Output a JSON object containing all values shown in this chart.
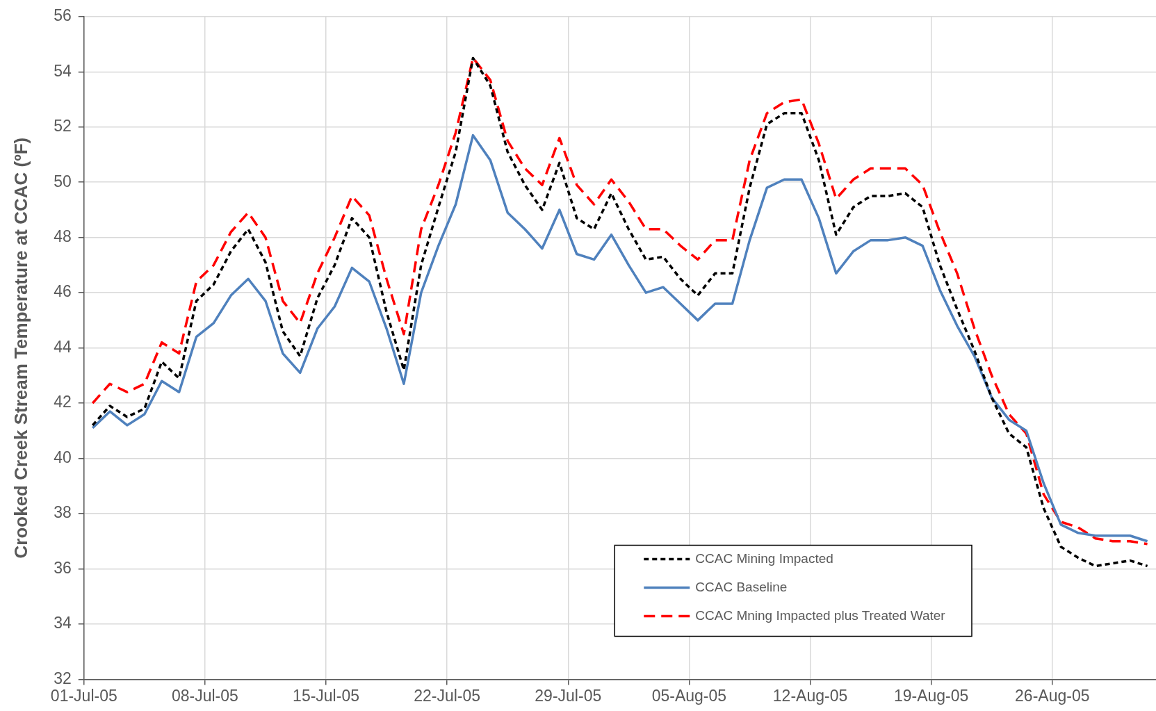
{
  "chart_data": {
    "type": "line",
    "ylabel": "Crooked Creek Stream Temperature at CCAC (ºF)",
    "x": [
      "--07-01T12:00",
      "--07-02T12:00",
      "--07-03T12:00",
      "--07-04T12:00",
      "--07-05T12:00",
      "--07-06T12:00",
      "--07-07T12:00",
      "--07-08T12:00",
      "--07-09T12:00",
      "--07-10T12:00",
      "--07-11T12:00",
      "--07-12T12:00",
      "--07-13T12:00",
      "--07-14T12:00",
      "--07-15T12:00",
      "--07-16T12:00",
      "--07-17T12:00",
      "--07-18T12:00",
      "--07-19T12:00",
      "--07-20T12:00",
      "--07-21T12:00",
      "--07-22T12:00",
      "--07-23T12:00",
      "--07-24T12:00",
      "--07-25T12:00",
      "--07-26T12:00",
      "--07-27T12:00",
      "--07-28T12:00",
      "--07-29T12:00",
      "--07-30T12:00",
      "--07-31T12:00",
      "--08-01T12:00",
      "--08-02T12:00",
      "--08-03T12:00",
      "--08-04T12:00",
      "--08-05T12:00",
      "--08-06T12:00",
      "--08-07T12:00",
      "--08-08T12:00",
      "--08-09T12:00",
      "--08-10T12:00",
      "--08-11T12:00",
      "--08-12T12:00",
      "--08-13T12:00",
      "--08-14T12:00",
      "--08-15T12:00",
      "--08-16T12:00",
      "--08-17T12:00",
      "--08-18T12:00",
      "--08-19T12:00",
      "--08-20T12:00",
      "--08-21T12:00",
      "--08-22T12:00",
      "--08-23T12:00",
      "--08-24T12:00",
      "--08-25T12:00",
      "--08-26T12:00",
      "--08-27T12:00",
      "--08-28T12:00",
      "--08-29T12:00",
      "--08-30T12:00",
      "--08-31T12:00"
    ],
    "series": [
      {
        "name": "CCAC Mining Impacted",
        "color": "#000000",
        "line_style": "dotted",
        "values": [
          41.2,
          41.9,
          41.5,
          41.8,
          43.5,
          42.9,
          45.7,
          46.3,
          47.5,
          48.3,
          47.1,
          44.6,
          43.7,
          45.8,
          47.0,
          48.7,
          48.0,
          45.3,
          43.2,
          47.0,
          49.1,
          51.1,
          54.5,
          53.5,
          51.1,
          49.9,
          49.0,
          50.7,
          48.7,
          48.3,
          49.6,
          48.3,
          47.2,
          47.3,
          46.5,
          45.9,
          46.7,
          46.7,
          49.8,
          52.1,
          52.5,
          52.5,
          50.8,
          48.1,
          49.1,
          49.5,
          49.5,
          49.6,
          49.1,
          47.0,
          45.4,
          43.9,
          42.2,
          40.9,
          40.4,
          38.2,
          36.8,
          36.4,
          36.1,
          36.2,
          36.3,
          36.1
        ]
      },
      {
        "name": "CCAC Baseline",
        "color": "#4f81bd",
        "line_style": "solid",
        "values": [
          41.1,
          41.7,
          41.2,
          41.6,
          42.8,
          42.4,
          44.4,
          44.9,
          45.9,
          46.5,
          45.7,
          43.8,
          43.1,
          44.7,
          45.5,
          46.9,
          46.4,
          44.7,
          42.7,
          46.0,
          47.7,
          49.2,
          51.7,
          50.8,
          48.9,
          48.3,
          47.6,
          49.0,
          47.4,
          47.2,
          48.1,
          47.0,
          46.0,
          46.2,
          45.6,
          45.0,
          45.6,
          45.6,
          47.9,
          49.8,
          50.1,
          50.1,
          48.7,
          46.7,
          47.5,
          47.9,
          47.9,
          48.0,
          47.7,
          46.1,
          44.8,
          43.7,
          42.2,
          41.4,
          41.0,
          39.1,
          37.6,
          37.3,
          37.2,
          37.2,
          37.2,
          37.0
        ]
      },
      {
        "name": "CCAC Mning Impacted plus Treated Water",
        "color": "#ff0000",
        "line_style": "dashed",
        "values": [
          42.0,
          42.7,
          42.4,
          42.7,
          44.2,
          43.8,
          46.4,
          47.0,
          48.2,
          48.9,
          48.0,
          45.7,
          44.9,
          46.7,
          48.0,
          49.5,
          48.8,
          46.5,
          44.5,
          48.3,
          49.9,
          51.8,
          54.5,
          53.7,
          51.5,
          50.5,
          49.9,
          51.6,
          49.9,
          49.2,
          50.1,
          49.3,
          48.3,
          48.3,
          47.7,
          47.2,
          47.9,
          47.9,
          50.8,
          52.5,
          52.9,
          53.0,
          51.4,
          49.4,
          50.1,
          50.5,
          50.5,
          50.5,
          49.9,
          48.2,
          46.7,
          44.7,
          43.0,
          41.6,
          40.9,
          38.7,
          37.7,
          37.5,
          37.1,
          37.0,
          37.0,
          36.9
        ]
      }
    ],
    "xlim": [
      "--07-01",
      "--09-01"
    ],
    "xticks": [
      {
        "value": "--07-01",
        "label": "01-Jul-05"
      },
      {
        "value": "--07-08",
        "label": "08-Jul-05"
      },
      {
        "value": "--07-15",
        "label": "15-Jul-05"
      },
      {
        "value": "--07-22",
        "label": "22-Jul-05"
      },
      {
        "value": "--07-29",
        "label": "29-Jul-05"
      },
      {
        "value": "--08-05",
        "label": "05-Aug-05"
      },
      {
        "value": "--08-12",
        "label": "12-Aug-05"
      },
      {
        "value": "--08-19",
        "label": "19-Aug-05"
      },
      {
        "value": "--08-26",
        "label": "26-Aug-05"
      }
    ],
    "ylim": [
      32,
      56
    ],
    "yticks": [
      32,
      34,
      36,
      38,
      40,
      42,
      44,
      46,
      48,
      50,
      52,
      54,
      56
    ],
    "grid": true,
    "legend": "bottom right",
    "marker": "none"
  }
}
